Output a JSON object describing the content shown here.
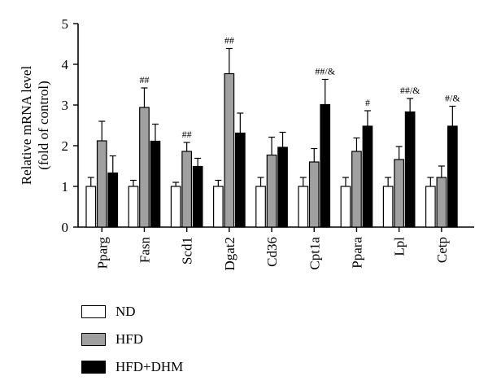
{
  "chart_data": {
    "type": "bar",
    "ylabel": "Relative mRNA level\n(fold of control)",
    "ylim": [
      0,
      5
    ],
    "yticks": [
      0,
      1,
      2,
      3,
      4,
      5
    ],
    "categories": [
      "Pparg",
      "Fasn",
      "Scd1",
      "Dgat2",
      "Cd36",
      "Cpt1a",
      "Ppara",
      "Lpl",
      "Cetp"
    ],
    "series": [
      {
        "name": "ND",
        "color": "#ffffff",
        "values": [
          1.0,
          1.0,
          1.0,
          1.0,
          1.0,
          1.0,
          1.0,
          1.0,
          1.0
        ],
        "errors": [
          0.22,
          0.15,
          0.1,
          0.15,
          0.22,
          0.22,
          0.22,
          0.22,
          0.22
        ]
      },
      {
        "name": "HFD",
        "color": "#a0a0a0",
        "values": [
          2.12,
          2.94,
          1.86,
          3.77,
          1.77,
          1.6,
          1.86,
          1.66,
          1.22
        ],
        "errors": [
          0.48,
          0.48,
          0.22,
          0.62,
          0.44,
          0.33,
          0.33,
          0.32,
          0.28
        ]
      },
      {
        "name": "HFD+DHM",
        "color": "#000000",
        "values": [
          1.33,
          2.11,
          1.49,
          2.31,
          1.96,
          3.01,
          2.48,
          2.83,
          2.48
        ],
        "errors": [
          0.42,
          0.42,
          0.2,
          0.49,
          0.37,
          0.62,
          0.38,
          0.33,
          0.49
        ]
      }
    ],
    "annotations": [
      {
        "category": "Fasn",
        "series": "HFD",
        "text": "##"
      },
      {
        "category": "Scd1",
        "series": "HFD",
        "text": "##"
      },
      {
        "category": "Dgat2",
        "series": "HFD",
        "text": "##"
      },
      {
        "category": "Cpt1a",
        "series": "HFD+DHM",
        "text": "##/&"
      },
      {
        "category": "Ppara",
        "series": "HFD+DHM",
        "text": "#"
      },
      {
        "category": "Lpl",
        "series": "HFD+DHM",
        "text": "##/&"
      },
      {
        "category": "Cetp",
        "series": "HFD+DHM",
        "text": "#/&"
      }
    ],
    "grid": false,
    "legend_position": "bottom-left"
  }
}
